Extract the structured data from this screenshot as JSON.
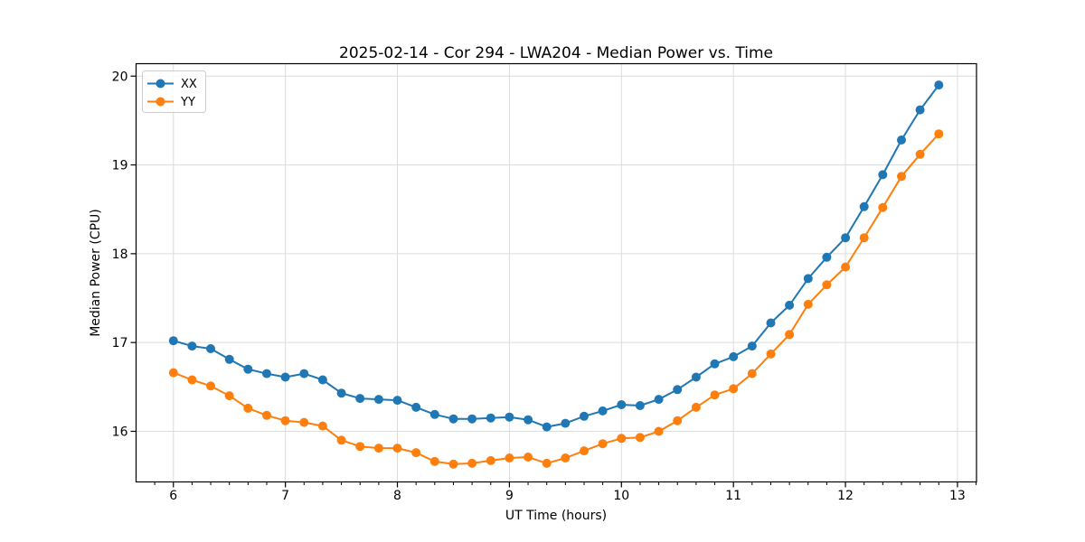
{
  "chart_data": {
    "type": "line",
    "title": "2025-02-14 - Cor 294 - LWA204 - Median Power vs. Time",
    "xlabel": "UT Time (hours)",
    "ylabel": "Median Power (CPU)",
    "xlim": [
      5.667,
      13.17
    ],
    "ylim": [
      15.43,
      20.14
    ],
    "x_ticks": [
      6,
      7,
      8,
      9,
      10,
      11,
      12,
      13
    ],
    "y_ticks": [
      16,
      17,
      18,
      19,
      20
    ],
    "x_minor_step": 0.16667,
    "grid": true,
    "legend_position": "upper-left",
    "x": [
      6.0,
      6.1667,
      6.3333,
      6.5,
      6.6667,
      6.8333,
      7.0,
      7.1667,
      7.3333,
      7.5,
      7.6667,
      7.8333,
      8.0,
      8.1667,
      8.3333,
      8.5,
      8.6667,
      8.8333,
      9.0,
      9.1667,
      9.3333,
      9.5,
      9.6667,
      9.8333,
      10.0,
      10.1667,
      10.3333,
      10.5,
      10.6667,
      10.8333,
      11.0,
      11.1667,
      11.3333,
      11.5,
      11.6667,
      11.8333,
      12.0,
      12.1667,
      12.3333,
      12.5,
      12.6667,
      12.8333
    ],
    "series": [
      {
        "name": "XX",
        "color": "#1f77b4",
        "values": [
          17.02,
          16.96,
          16.93,
          16.81,
          16.7,
          16.65,
          16.61,
          16.65,
          16.58,
          16.43,
          16.37,
          16.36,
          16.35,
          16.27,
          16.19,
          16.14,
          16.14,
          16.15,
          16.16,
          16.13,
          16.05,
          16.09,
          16.17,
          16.23,
          16.3,
          16.29,
          16.36,
          16.47,
          16.61,
          16.76,
          16.84,
          16.96,
          17.22,
          17.42,
          17.72,
          17.96,
          18.18,
          18.53,
          18.89,
          19.28,
          19.62,
          19.9
        ]
      },
      {
        "name": "YY",
        "color": "#ff7f0e",
        "values": [
          16.66,
          16.58,
          16.51,
          16.4,
          16.26,
          16.18,
          16.12,
          16.1,
          16.06,
          15.9,
          15.83,
          15.81,
          15.81,
          15.76,
          15.66,
          15.63,
          15.64,
          15.67,
          15.7,
          15.71,
          15.64,
          15.7,
          15.78,
          15.86,
          15.92,
          15.93,
          16.0,
          16.12,
          16.27,
          16.41,
          16.48,
          16.65,
          16.87,
          17.09,
          17.43,
          17.65,
          17.85,
          18.18,
          18.52,
          18.87,
          19.12,
          19.35
        ]
      }
    ],
    "style": {
      "grid_color": "#dcdcdc",
      "spine_color": "#000000",
      "tick_color": "#000000",
      "legend_border_color": "#cccccc",
      "legend_bg_color": "#ffffff"
    }
  }
}
